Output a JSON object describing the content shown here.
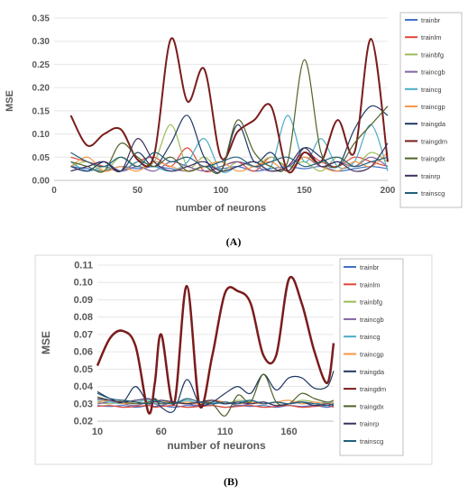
{
  "colors": {
    "trainbr": "#4472c4",
    "trainlm": "#e0463a",
    "trainbfg": "#9bbb59",
    "traincgb": "#8064a2",
    "traincg": "#4bacc6",
    "traincgp": "#f79646",
    "traingda": "#1f3864",
    "traingdm": "#7b1c1c",
    "traingdx": "#4f6228",
    "trainrp": "#3f2f5f",
    "trainscg": "#215f7a"
  },
  "chart_data": [
    {
      "type": "line",
      "panel_label": "(A)",
      "xlabel": "number of neurons",
      "ylabel": "MSE",
      "xlim": [
        0,
        200
      ],
      "ylim": [
        0,
        0.35
      ],
      "xticks": [
        "0",
        "50",
        "100",
        "150",
        "200"
      ],
      "yticks": [
        "0.00",
        "0.05",
        "0.10",
        "0.15",
        "0.20",
        "0.25",
        "0.30",
        "0.35"
      ],
      "legend_position": "right",
      "x": [
        10,
        20,
        30,
        40,
        50,
        60,
        70,
        80,
        90,
        100,
        110,
        120,
        130,
        140,
        150,
        160,
        170,
        180,
        190,
        200
      ],
      "series": [
        {
          "name": "trainbr",
          "values": [
            0.03,
            0.025,
            0.02,
            0.03,
            0.025,
            0.03,
            0.025,
            0.02,
            0.03,
            0.025,
            0.03,
            0.02,
            0.025,
            0.03,
            0.025,
            0.03,
            0.02,
            0.025,
            0.03,
            0.025
          ]
        },
        {
          "name": "trainlm",
          "values": [
            0.05,
            0.04,
            0.03,
            0.02,
            0.04,
            0.05,
            0.03,
            0.07,
            0.02,
            0.03,
            0.04,
            0.02,
            0.05,
            0.03,
            0.06,
            0.04,
            0.03,
            0.05,
            0.04,
            0.03
          ]
        },
        {
          "name": "trainbfg",
          "values": [
            0.03,
            0.04,
            0.02,
            0.05,
            0.03,
            0.04,
            0.12,
            0.03,
            0.05,
            0.02,
            0.04,
            0.03,
            0.05,
            0.03,
            0.04,
            0.02,
            0.05,
            0.03,
            0.06,
            0.04
          ]
        },
        {
          "name": "traincgb",
          "values": [
            0.02,
            0.03,
            0.04,
            0.02,
            0.03,
            0.02,
            0.04,
            0.03,
            0.02,
            0.03,
            0.04,
            0.03,
            0.02,
            0.03,
            0.05,
            0.03,
            0.04,
            0.03,
            0.05,
            0.03
          ]
        },
        {
          "name": "traincg",
          "values": [
            0.04,
            0.02,
            0.03,
            0.02,
            0.04,
            0.03,
            0.02,
            0.04,
            0.09,
            0.02,
            0.03,
            0.04,
            0.03,
            0.14,
            0.04,
            0.09,
            0.03,
            0.04,
            0.12,
            0.02
          ]
        },
        {
          "name": "traincgp",
          "values": [
            0.03,
            0.05,
            0.02,
            0.03,
            0.02,
            0.04,
            0.03,
            0.02,
            0.03,
            0.04,
            0.02,
            0.03,
            0.04,
            0.02,
            0.05,
            0.03,
            0.02,
            0.04,
            0.03,
            0.06
          ]
        },
        {
          "name": "traingda",
          "values": [
            0.03,
            0.02,
            0.04,
            0.02,
            0.06,
            0.03,
            0.08,
            0.14,
            0.05,
            0.02,
            0.12,
            0.04,
            0.06,
            0.02,
            0.07,
            0.05,
            0.03,
            0.11,
            0.16,
            0.14
          ]
        },
        {
          "name": "traingdm",
          "values": [
            0.14,
            0.075,
            0.1,
            0.11,
            0.045,
            0.055,
            0.305,
            0.17,
            0.24,
            0.05,
            0.105,
            0.13,
            0.16,
            0.02,
            0.06,
            0.04,
            0.13,
            0.06,
            0.305,
            0.04
          ]
        },
        {
          "name": "traingdx",
          "values": [
            0.04,
            0.03,
            0.02,
            0.08,
            0.05,
            0.03,
            0.05,
            0.02,
            0.03,
            0.02,
            0.13,
            0.06,
            0.03,
            0.04,
            0.26,
            0.06,
            0.03,
            0.08,
            0.12,
            0.16
          ]
        },
        {
          "name": "trainrp",
          "values": [
            0.02,
            0.03,
            0.04,
            0.02,
            0.09,
            0.04,
            0.02,
            0.03,
            0.04,
            0.02,
            0.03,
            0.04,
            0.02,
            0.03,
            0.07,
            0.03,
            0.04,
            0.02,
            0.03,
            0.08
          ]
        },
        {
          "name": "trainscg",
          "values": [
            0.06,
            0.04,
            0.03,
            0.05,
            0.03,
            0.06,
            0.04,
            0.05,
            0.03,
            0.04,
            0.05,
            0.03,
            0.04,
            0.05,
            0.03,
            0.04,
            0.05,
            0.03,
            0.04,
            0.05
          ]
        }
      ]
    },
    {
      "type": "line",
      "panel_label": "(B)",
      "xlabel": "number of neurons",
      "ylabel": "MSE",
      "xlim": [
        10,
        195
      ],
      "ylim": [
        0.02,
        0.11
      ],
      "xticks": [
        "10",
        "60",
        "110",
        "160"
      ],
      "yticks": [
        "0.02",
        "0.03",
        "0.04",
        "0.05",
        "0.06",
        "0.07",
        "0.08",
        "0.09",
        "0.10",
        "0.11"
      ],
      "legend_position": "right",
      "x": [
        10,
        20,
        30,
        40,
        50,
        55,
        60,
        70,
        80,
        90,
        100,
        110,
        120,
        130,
        140,
        150,
        160,
        170,
        180,
        190,
        195
      ],
      "series": [
        {
          "name": "trainbr",
          "values": [
            0.029,
            0.0285,
            0.029,
            0.028,
            0.029,
            0.0285,
            0.029,
            0.028,
            0.029,
            0.0285,
            0.029,
            0.028,
            0.029,
            0.0285,
            0.029,
            0.028,
            0.029,
            0.0285,
            0.029,
            0.028,
            0.029
          ]
        },
        {
          "name": "trainlm",
          "values": [
            0.0285,
            0.029,
            0.028,
            0.0285,
            0.029,
            0.028,
            0.0285,
            0.029,
            0.028,
            0.0285,
            0.029,
            0.028,
            0.0285,
            0.029,
            0.028,
            0.0285,
            0.029,
            0.028,
            0.0285,
            0.029,
            0.028
          ]
        },
        {
          "name": "trainbfg",
          "values": [
            0.031,
            0.03,
            0.032,
            0.031,
            0.03,
            0.033,
            0.031,
            0.03,
            0.032,
            0.03,
            0.031,
            0.03,
            0.032,
            0.031,
            0.03,
            0.031,
            0.03,
            0.032,
            0.031,
            0.03,
            0.031
          ]
        },
        {
          "name": "traincgb",
          "values": [
            0.03,
            0.031,
            0.03,
            0.029,
            0.031,
            0.03,
            0.029,
            0.031,
            0.03,
            0.029,
            0.03,
            0.031,
            0.029,
            0.03,
            0.031,
            0.029,
            0.03,
            0.031,
            0.029,
            0.03,
            0.029
          ]
        },
        {
          "name": "traincg",
          "values": [
            0.032,
            0.031,
            0.03,
            0.031,
            0.032,
            0.03,
            0.031,
            0.03,
            0.032,
            0.03,
            0.031,
            0.03,
            0.031,
            0.032,
            0.03,
            0.031,
            0.03,
            0.031,
            0.03,
            0.031,
            0.03
          ]
        },
        {
          "name": "traincgp",
          "values": [
            0.031,
            0.032,
            0.03,
            0.031,
            0.03,
            0.031,
            0.032,
            0.03,
            0.031,
            0.03,
            0.032,
            0.031,
            0.03,
            0.031,
            0.03,
            0.031,
            0.032,
            0.03,
            0.031,
            0.03,
            0.031
          ]
        },
        {
          "name": "traingda",
          "values": [
            0.037,
            0.033,
            0.031,
            0.04,
            0.03,
            0.033,
            0.028,
            0.026,
            0.044,
            0.03,
            0.031,
            0.036,
            0.04,
            0.036,
            0.047,
            0.038,
            0.045,
            0.045,
            0.039,
            0.04,
            0.049
          ]
        },
        {
          "name": "traingdm",
          "values": [
            0.052,
            0.068,
            0.072,
            0.063,
            0.025,
            0.042,
            0.07,
            0.03,
            0.098,
            0.029,
            0.058,
            0.094,
            0.095,
            0.088,
            0.058,
            0.058,
            0.102,
            0.088,
            0.06,
            0.042,
            0.065
          ]
        },
        {
          "name": "traingdx",
          "values": [
            0.034,
            0.032,
            0.031,
            0.03,
            0.031,
            0.032,
            0.03,
            0.031,
            0.03,
            0.031,
            0.03,
            0.023,
            0.035,
            0.031,
            0.047,
            0.031,
            0.03,
            0.036,
            0.033,
            0.031,
            0.032
          ]
        },
        {
          "name": "trainrp",
          "values": [
            0.033,
            0.032,
            0.031,
            0.032,
            0.033,
            0.031,
            0.032,
            0.031,
            0.03,
            0.031,
            0.032,
            0.03,
            0.031,
            0.03,
            0.031,
            0.029,
            0.03,
            0.031,
            0.029,
            0.03,
            0.029
          ]
        },
        {
          "name": "trainscg",
          "values": [
            0.036,
            0.033,
            0.032,
            0.031,
            0.03,
            0.032,
            0.031,
            0.03,
            0.033,
            0.031,
            0.03,
            0.031,
            0.03,
            0.032,
            0.03,
            0.031,
            0.03,
            0.031,
            0.03,
            0.029,
            0.03
          ]
        }
      ]
    }
  ]
}
